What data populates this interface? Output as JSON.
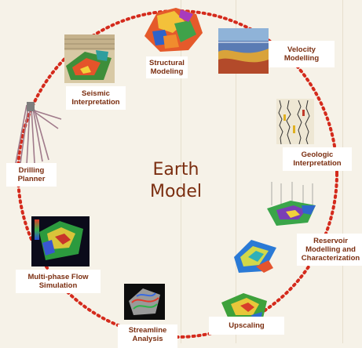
{
  "center": {
    "line1": "Earth",
    "line2": "Model"
  },
  "stages": [
    {
      "id": "structural",
      "label": "Structural\nModeling",
      "icon": "structural-model-image"
    },
    {
      "id": "velocity",
      "label": "Velocity\nModelling",
      "icon": "velocity-model-image"
    },
    {
      "id": "geologic",
      "label": "Geologic\nInterpretation",
      "icon": "well-logs-image"
    },
    {
      "id": "reservoir",
      "label": "Reservoir\nModelling and\nCharacterization",
      "icon": "reservoir-grid-image"
    },
    {
      "id": "upscaling",
      "label": "Upscaling",
      "icon": "upscaled-grid-image"
    },
    {
      "id": "streamline",
      "label": "Streamline\nAnalysis",
      "icon": "streamline-image"
    },
    {
      "id": "multiphase",
      "label": "Multi-phase Flow\nSimulation",
      "icon": "flow-simulation-image"
    },
    {
      "id": "drilling",
      "label": "Drilling\nPlanner",
      "icon": "well-trajectories-image"
    },
    {
      "id": "seismic",
      "label": "Seismic\nInterpretation",
      "icon": "seismic-cube-image"
    }
  ],
  "colors": {
    "cycle": "#d42a1c",
    "text": "#7b2e10",
    "background": "#f6f2e8"
  }
}
